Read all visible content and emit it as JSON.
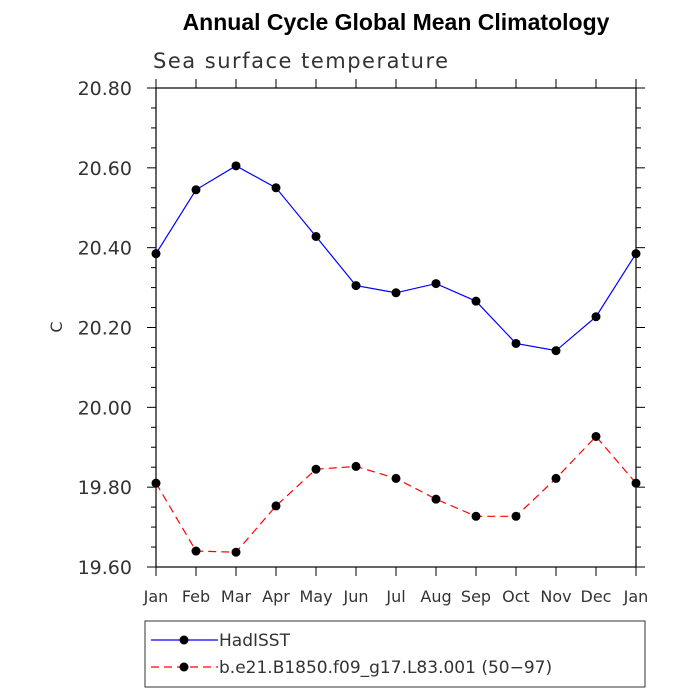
{
  "chart_data": {
    "type": "line",
    "title": "Annual Cycle Global Mean Climatology",
    "subtitle": "Sea surface temperature",
    "ylabel": "C",
    "xlabel": "",
    "categories": [
      "Jan",
      "Feb",
      "Mar",
      "Apr",
      "May",
      "Jun",
      "Jul",
      "Aug",
      "Sep",
      "Oct",
      "Nov",
      "Dec",
      "Jan"
    ],
    "ylim": [
      19.6,
      20.8
    ],
    "yticks": [
      19.6,
      19.8,
      20.0,
      20.2,
      20.4,
      20.6,
      20.8
    ],
    "ytick_labels": [
      "19.60",
      "19.80",
      "20.00",
      "20.20",
      "20.40",
      "20.60",
      "20.80"
    ],
    "grid": false,
    "legend_position": "bottom",
    "series": [
      {
        "name": "HadISST",
        "color": "#0000ff",
        "dash": "solid",
        "values": [
          20.385,
          20.545,
          20.605,
          20.55,
          20.428,
          20.305,
          20.287,
          20.31,
          20.266,
          20.16,
          20.142,
          20.227,
          20.385
        ]
      },
      {
        "name": "b.e21.B1850.f09_g17.L83.001 (50−97)",
        "color": "#ff0000",
        "dash": "dashed",
        "values": [
          19.81,
          19.64,
          19.637,
          19.753,
          19.845,
          19.852,
          19.822,
          19.77,
          19.727,
          19.727,
          19.822,
          19.927,
          19.81
        ]
      }
    ]
  }
}
